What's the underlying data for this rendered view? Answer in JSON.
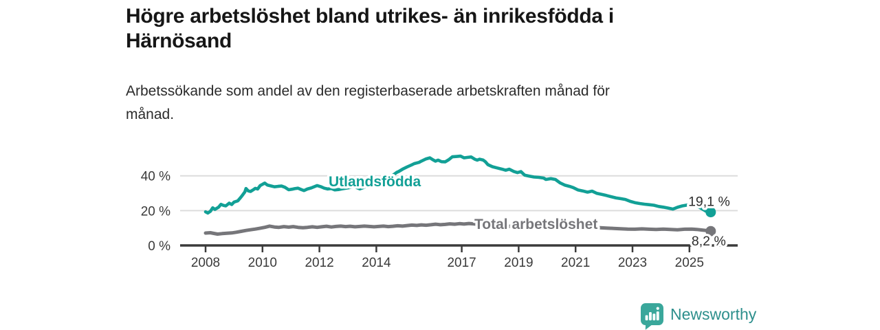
{
  "page": {
    "title_lines": [
      "Högre arbetslöshet bland utrikes- än inrikesfödda i",
      "Härnösand"
    ],
    "subtitle_lines": [
      "Arbetssökande som andel av den registerbaserade arbetskraften månad för",
      "månad."
    ]
  },
  "branding": {
    "logo_text": "Newsworthy",
    "logo_icon": "bar-chart-speech-bubble-icon"
  },
  "colors": {
    "series_utlandsfodda": "#12a096",
    "series_total": "#76767a",
    "axis": "#3b3b3b",
    "grid": "#dcdcdc",
    "value_label": "#2d2d2d",
    "logo_teal": "#3aa79b",
    "logo_text_teal": "#2d8f8c"
  },
  "chart_data": {
    "type": "line",
    "title": "Högre arbetslöshet bland utrikes- än inrikesfödda i Härnösand",
    "subtitle": "Arbetssökande som andel av den registerbaserade arbetskraften månad för månad.",
    "grid": true,
    "legend_position": "inline",
    "x_axis": {
      "unit": "year",
      "ticks": [
        2008,
        2010,
        2012,
        2014,
        2017,
        2019,
        2021,
        2023,
        2025
      ],
      "tick_labels": [
        "2008",
        "2010",
        "2012",
        "2014",
        "2017",
        "2019",
        "2021",
        "2023",
        "2025"
      ],
      "range": [
        2007.1,
        2026.7
      ]
    },
    "y_axis": {
      "unit": "percent",
      "ticks": [
        0,
        20,
        40
      ],
      "tick_labels": [
        "0 %",
        "20 %",
        "40 %"
      ],
      "range": [
        0,
        54
      ]
    },
    "series": [
      {
        "name": "Utlandsfödda",
        "color_key": "series_utlandsfodda",
        "end_label": "19,1 %",
        "end_value": 19.1,
        "points": [
          [
            2008.0,
            19.3
          ],
          [
            2008.08,
            18.6
          ],
          [
            2008.17,
            19.6
          ],
          [
            2008.25,
            21.6
          ],
          [
            2008.33,
            20.7
          ],
          [
            2008.46,
            22.0
          ],
          [
            2008.54,
            23.6
          ],
          [
            2008.63,
            23.0
          ],
          [
            2008.71,
            22.7
          ],
          [
            2008.83,
            24.3
          ],
          [
            2008.92,
            23.5
          ],
          [
            2009.0,
            24.9
          ],
          [
            2009.13,
            25.6
          ],
          [
            2009.21,
            27.1
          ],
          [
            2009.29,
            28.7
          ],
          [
            2009.38,
            30.7
          ],
          [
            2009.42,
            32.7
          ],
          [
            2009.5,
            31.3
          ],
          [
            2009.58,
            31.0
          ],
          [
            2009.67,
            31.9
          ],
          [
            2009.75,
            32.8
          ],
          [
            2009.83,
            32.4
          ],
          [
            2009.92,
            34.4
          ],
          [
            2010.0,
            35.1
          ],
          [
            2010.08,
            35.8
          ],
          [
            2010.17,
            34.7
          ],
          [
            2010.29,
            34.2
          ],
          [
            2010.42,
            33.7
          ],
          [
            2010.54,
            33.9
          ],
          [
            2010.67,
            34.1
          ],
          [
            2010.79,
            33.4
          ],
          [
            2010.92,
            32.0
          ],
          [
            2011.04,
            32.3
          ],
          [
            2011.13,
            32.6
          ],
          [
            2011.25,
            32.9
          ],
          [
            2011.38,
            32.0
          ],
          [
            2011.46,
            31.5
          ],
          [
            2011.58,
            32.4
          ],
          [
            2011.71,
            33.0
          ],
          [
            2011.83,
            33.8
          ],
          [
            2011.92,
            34.4
          ],
          [
            2012.04,
            33.8
          ],
          [
            2012.17,
            32.9
          ],
          [
            2012.29,
            32.4
          ],
          [
            2012.42,
            32.7
          ],
          [
            2012.54,
            31.9
          ],
          [
            2012.67,
            32.1
          ],
          [
            2012.79,
            32.5
          ],
          [
            2012.92,
            32.8
          ],
          [
            2013.08,
            33.3
          ],
          [
            2013.21,
            33.9
          ],
          [
            2013.33,
            33.1
          ],
          [
            2013.42,
            32.5
          ],
          [
            2013.54,
            33.2
          ],
          [
            2013.71,
            34.4
          ],
          [
            2013.88,
            35.2
          ],
          [
            2014.04,
            36.0
          ],
          [
            2014.21,
            37.0
          ],
          [
            2014.38,
            38.3
          ],
          [
            2014.54,
            39.8
          ],
          [
            2014.71,
            41.9
          ],
          [
            2014.79,
            42.5
          ],
          [
            2014.92,
            43.8
          ],
          [
            2015.08,
            45.1
          ],
          [
            2015.25,
            46.3
          ],
          [
            2015.33,
            47.0
          ],
          [
            2015.5,
            47.7
          ],
          [
            2015.58,
            48.4
          ],
          [
            2015.75,
            49.7
          ],
          [
            2015.88,
            50.3
          ],
          [
            2016.0,
            49.1
          ],
          [
            2016.08,
            48.4
          ],
          [
            2016.17,
            49.0
          ],
          [
            2016.29,
            48.1
          ],
          [
            2016.42,
            48.0
          ],
          [
            2016.54,
            49.2
          ],
          [
            2016.67,
            50.9
          ],
          [
            2016.83,
            51.1
          ],
          [
            2016.96,
            51.3
          ],
          [
            2017.08,
            50.3
          ],
          [
            2017.21,
            50.6
          ],
          [
            2017.33,
            50.8
          ],
          [
            2017.46,
            49.5
          ],
          [
            2017.54,
            49.0
          ],
          [
            2017.63,
            49.5
          ],
          [
            2017.75,
            49.1
          ],
          [
            2017.83,
            48.1
          ],
          [
            2017.92,
            46.4
          ],
          [
            2018.08,
            45.2
          ],
          [
            2018.25,
            44.5
          ],
          [
            2018.42,
            43.8
          ],
          [
            2018.54,
            43.2
          ],
          [
            2018.67,
            43.8
          ],
          [
            2018.83,
            42.5
          ],
          [
            2018.96,
            41.8
          ],
          [
            2019.08,
            42.4
          ],
          [
            2019.21,
            40.4
          ],
          [
            2019.38,
            39.8
          ],
          [
            2019.54,
            39.3
          ],
          [
            2019.71,
            39.1
          ],
          [
            2019.88,
            38.7
          ],
          [
            2019.96,
            37.9
          ],
          [
            2020.13,
            38.4
          ],
          [
            2020.29,
            37.9
          ],
          [
            2020.46,
            35.9
          ],
          [
            2020.63,
            34.6
          ],
          [
            2020.79,
            33.9
          ],
          [
            2020.92,
            33.2
          ],
          [
            2021.08,
            31.9
          ],
          [
            2021.25,
            31.3
          ],
          [
            2021.42,
            30.6
          ],
          [
            2021.58,
            31.2
          ],
          [
            2021.75,
            29.9
          ],
          [
            2021.92,
            29.3
          ],
          [
            2022.08,
            28.7
          ],
          [
            2022.25,
            28.0
          ],
          [
            2022.42,
            27.3
          ],
          [
            2022.58,
            26.9
          ],
          [
            2022.75,
            26.4
          ],
          [
            2022.92,
            25.3
          ],
          [
            2023.08,
            24.6
          ],
          [
            2023.25,
            24.1
          ],
          [
            2023.42,
            23.7
          ],
          [
            2023.58,
            23.4
          ],
          [
            2023.75,
            23.1
          ],
          [
            2023.92,
            22.4
          ],
          [
            2024.08,
            22.0
          ],
          [
            2024.25,
            21.5
          ],
          [
            2024.42,
            20.9
          ],
          [
            2024.58,
            21.9
          ],
          [
            2024.75,
            22.7
          ],
          [
            2024.92,
            23.2
          ],
          [
            2025.08,
            23.3
          ],
          [
            2025.17,
            23.0
          ],
          [
            2025.33,
            22.1
          ],
          [
            2025.5,
            20.5
          ],
          [
            2025.58,
            19.7
          ],
          [
            2025.67,
            19.0
          ],
          [
            2025.75,
            19.1
          ]
        ]
      },
      {
        "name": "Total arbetslöshet",
        "color_key": "series_total",
        "end_label": "8,2 %",
        "end_value": 8.2,
        "points": [
          [
            2008.0,
            7.1
          ],
          [
            2008.17,
            7.3
          ],
          [
            2008.29,
            6.9
          ],
          [
            2008.42,
            6.5
          ],
          [
            2008.58,
            6.8
          ],
          [
            2008.75,
            7.0
          ],
          [
            2008.92,
            7.2
          ],
          [
            2009.08,
            7.6
          ],
          [
            2009.25,
            8.1
          ],
          [
            2009.42,
            8.6
          ],
          [
            2009.58,
            9.0
          ],
          [
            2009.75,
            9.4
          ],
          [
            2009.92,
            9.9
          ],
          [
            2010.08,
            10.4
          ],
          [
            2010.25,
            11.1
          ],
          [
            2010.42,
            10.6
          ],
          [
            2010.58,
            10.4
          ],
          [
            2010.75,
            10.8
          ],
          [
            2010.92,
            10.5
          ],
          [
            2011.08,
            10.8
          ],
          [
            2011.25,
            10.4
          ],
          [
            2011.42,
            10.2
          ],
          [
            2011.58,
            10.4
          ],
          [
            2011.75,
            10.7
          ],
          [
            2011.92,
            10.4
          ],
          [
            2012.08,
            10.7
          ],
          [
            2012.25,
            11.0
          ],
          [
            2012.42,
            10.6
          ],
          [
            2012.58,
            10.9
          ],
          [
            2012.75,
            11.1
          ],
          [
            2012.92,
            10.8
          ],
          [
            2013.08,
            11.0
          ],
          [
            2013.25,
            10.7
          ],
          [
            2013.42,
            10.9
          ],
          [
            2013.58,
            11.1
          ],
          [
            2013.75,
            10.9
          ],
          [
            2013.92,
            10.7
          ],
          [
            2014.08,
            10.9
          ],
          [
            2014.25,
            11.1
          ],
          [
            2014.42,
            10.8
          ],
          [
            2014.58,
            11.0
          ],
          [
            2014.75,
            11.3
          ],
          [
            2014.92,
            11.1
          ],
          [
            2015.08,
            11.4
          ],
          [
            2015.25,
            11.7
          ],
          [
            2015.42,
            11.5
          ],
          [
            2015.58,
            11.8
          ],
          [
            2015.75,
            11.6
          ],
          [
            2015.92,
            11.9
          ],
          [
            2016.08,
            12.2
          ],
          [
            2016.25,
            11.9
          ],
          [
            2016.42,
            12.1
          ],
          [
            2016.58,
            12.4
          ],
          [
            2016.75,
            12.2
          ],
          [
            2016.92,
            12.5
          ],
          [
            2017.08,
            12.3
          ],
          [
            2017.25,
            12.6
          ],
          [
            2017.42,
            12.4
          ],
          [
            2017.58,
            12.1
          ],
          [
            2017.75,
            11.9
          ],
          [
            2017.92,
            11.6
          ],
          [
            2018.17,
            11.3
          ],
          [
            2018.42,
            11.1
          ],
          [
            2018.67,
            11.0
          ],
          [
            2018.92,
            10.9
          ],
          [
            2019.17,
            10.6
          ],
          [
            2019.42,
            10.4
          ],
          [
            2019.67,
            10.3
          ],
          [
            2019.92,
            10.7
          ],
          [
            2020.17,
            11.2
          ],
          [
            2020.42,
            11.5
          ],
          [
            2020.67,
            11.4
          ],
          [
            2020.92,
            11.1
          ],
          [
            2021.17,
            10.8
          ],
          [
            2021.42,
            10.5
          ],
          [
            2021.67,
            10.3
          ],
          [
            2021.92,
            10.1
          ],
          [
            2022.08,
            10.0
          ],
          [
            2022.33,
            9.8
          ],
          [
            2022.58,
            9.6
          ],
          [
            2022.83,
            9.4
          ],
          [
            2023.08,
            9.3
          ],
          [
            2023.33,
            9.5
          ],
          [
            2023.58,
            9.3
          ],
          [
            2023.83,
            9.2
          ],
          [
            2024.08,
            9.4
          ],
          [
            2024.33,
            9.2
          ],
          [
            2024.58,
            9.0
          ],
          [
            2024.83,
            9.3
          ],
          [
            2025.08,
            9.4
          ],
          [
            2025.25,
            9.2
          ],
          [
            2025.42,
            8.9
          ],
          [
            2025.58,
            8.6
          ],
          [
            2025.75,
            8.2
          ]
        ]
      }
    ]
  }
}
